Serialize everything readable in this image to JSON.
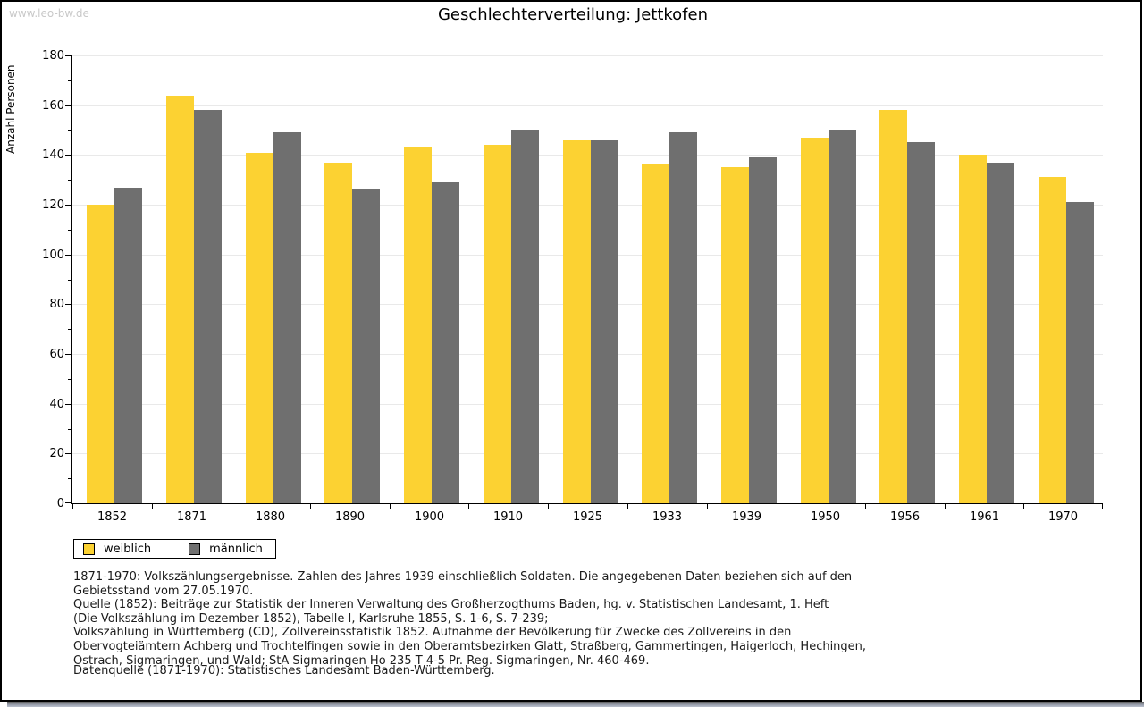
{
  "page": {
    "watermark": "www.leo-bw.de",
    "title": "Geschlechterverteilung: Jettkofen"
  },
  "chart_data": {
    "type": "bar",
    "title": "Geschlechterverteilung: Jettkofen",
    "xlabel": "",
    "ylabel": "Anzahl Personen",
    "ylim": [
      0,
      180
    ],
    "ytick_step": 20,
    "ytick_minor_step": 10,
    "grid": true,
    "legend_position": "bottom-left",
    "categories": [
      "1852",
      "1871",
      "1880",
      "1890",
      "1900",
      "1910",
      "1925",
      "1933",
      "1939",
      "1950",
      "1956",
      "1961",
      "1970"
    ],
    "series": [
      {
        "name": "weiblich",
        "color": "#FCD232",
        "values": [
          120,
          164,
          141,
          137,
          143,
          144,
          146,
          136,
          135,
          147,
          158,
          140,
          131
        ]
      },
      {
        "name": "männlich",
        "color": "#6F6F6F",
        "values": [
          127,
          158,
          149,
          126,
          129,
          150,
          146,
          149,
          139,
          150,
          145,
          137,
          121
        ]
      }
    ]
  },
  "legend": {
    "items": [
      {
        "label": "weiblich",
        "color": "#FCD232"
      },
      {
        "label": "männlich",
        "color": "#6F6F6F"
      }
    ]
  },
  "footer": {
    "lines": [
      "1871-1970: Volkszählungsergebnisse. Zahlen des Jahres 1939 einschließlich Soldaten. Die angegebenen Daten beziehen sich auf den",
      "Gebietsstand vom 27.05.1970.",
      "Quelle (1852): Beiträge zur Statistik der Inneren Verwaltung des Großherzogthums Baden, hg. v. Statistischen Landesamt, 1. Heft",
      "(Die Volkszählung im Dezember 1852), Tabelle I, Karlsruhe 1855, S. 1-6, S. 7-239;",
      "Volkszählung in Württemberg (CD), Zollvereinsstatistik 1852. Aufnahme der Bevölkerung für Zwecke des Zollvereins in den",
      "Obervogteiämtern Achberg und Trochtelfingen sowie in den Oberamtsbezirken Glatt, Straßberg, Gammertingen, Haigerloch, Hechingen,",
      "Ostrach, Sigmaringen, und Wald; StA Sigmaringen Ho 235 T 4-5 Pr. Reg. Sigmaringen, Nr. 460-469."
    ],
    "datasource": "Datenquelle (1871-1970): Statistisches Landesamt Baden-Württemberg."
  },
  "colors": {
    "weiblich": "#FCD232",
    "maennlich": "#6F6F6F",
    "gridline": "#e9e9e9",
    "axis": "#000000",
    "watermark": "#c9c9c9",
    "page_border": "#000000"
  }
}
